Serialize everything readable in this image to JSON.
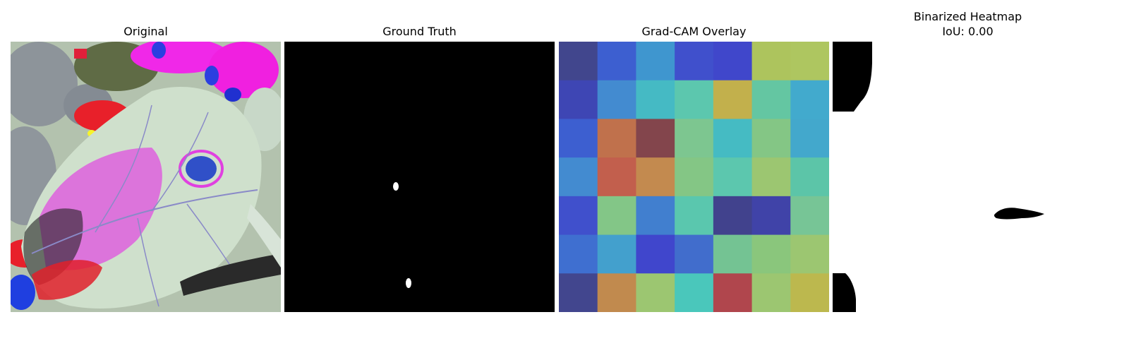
{
  "panels": {
    "original": {
      "title": "Original"
    },
    "ground_truth": {
      "title": "Ground Truth"
    },
    "gradcam": {
      "title": "Grad-CAM Overlay",
      "grid": [
        [
          "#41468d",
          "#3d5fd0",
          "#3f96cf",
          "#4050cc",
          "#4047cb",
          "#adc45d",
          "#aec660"
        ],
        [
          "#3e46b4",
          "#438bd0",
          "#45bac4",
          "#5cc7ae",
          "#c2b04c",
          "#64c6a2",
          "#42aacd"
        ],
        [
          "#3d5fd0",
          "#c0714c",
          "#83454c",
          "#7dc690",
          "#45bbc3",
          "#84c685",
          "#43a8cc"
        ],
        [
          "#438bd0",
          "#c25f4d",
          "#c38a4f",
          "#84c685",
          "#5cc7ae",
          "#9cc671",
          "#5cc5a8"
        ],
        [
          "#4050cc",
          "#83c687",
          "#417fcf",
          "#5ac7ae",
          "#41428d",
          "#4043a8",
          "#77c596"
        ],
        [
          "#3f6fd0",
          "#43a0cd",
          "#4046cc",
          "#416dcc",
          "#74c393",
          "#8ac67c",
          "#9cc671"
        ],
        [
          "#42468e",
          "#c18a4e",
          "#9cc671",
          "#4ac7bb",
          "#b0464d",
          "#9cc671",
          "#bcb84e"
        ]
      ]
    },
    "binarized": {
      "title_line1": "Binarized Heatmap",
      "title_line2": "IoU: 0.00"
    }
  }
}
